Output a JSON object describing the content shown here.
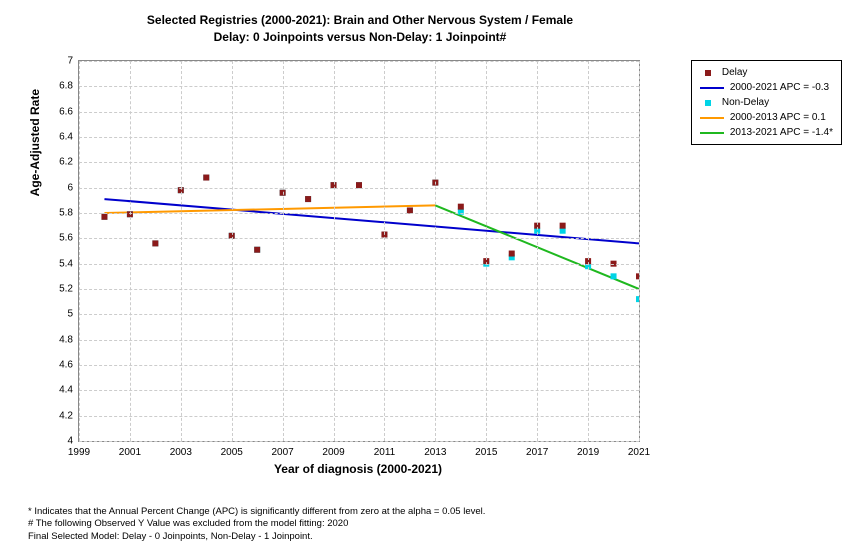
{
  "chart": {
    "title_line1": "Selected Registries (2000-2021): Brain and Other Nervous System / Female",
    "title_line2": "Delay: 0 Joinpoints  versus  Non-Delay: 1 Joinpoint#",
    "xlabel": "Year of diagnosis (2000-2021)",
    "ylabel": "Age-Adjusted Rate",
    "xlim": [
      1999,
      2021
    ],
    "ylim": [
      4,
      7
    ],
    "xticks": [
      1999,
      2001,
      2003,
      2005,
      2007,
      2009,
      2011,
      2013,
      2015,
      2017,
      2019,
      2021
    ],
    "yticks": [
      4,
      4.2,
      4.4,
      4.6,
      4.8,
      5,
      5.2,
      5.4,
      5.6,
      5.8,
      6,
      6.2,
      6.4,
      6.6,
      6.8,
      7
    ],
    "grid_color": "#cccccc",
    "border_color": "#888888",
    "background_color": "#ffffff",
    "title_fontsize": 12,
    "label_fontsize": 12,
    "tick_fontsize": 10,
    "series": {
      "delay_points": {
        "label": "Delay",
        "color": "#8b1a1a",
        "marker": "square",
        "marker_size": 6,
        "data": [
          [
            2000,
            5.77
          ],
          [
            2001,
            5.79
          ],
          [
            2002,
            5.56
          ],
          [
            2003,
            5.98
          ],
          [
            2004,
            6.08
          ],
          [
            2005,
            5.62
          ],
          [
            2006,
            5.51
          ],
          [
            2007,
            5.96
          ],
          [
            2008,
            5.91
          ],
          [
            2009,
            6.02
          ],
          [
            2010,
            6.02
          ],
          [
            2011,
            5.63
          ],
          [
            2012,
            5.82
          ],
          [
            2013,
            6.04
          ],
          [
            2014,
            5.85
          ],
          [
            2015,
            5.42
          ],
          [
            2016,
            5.48
          ],
          [
            2017,
            5.7
          ],
          [
            2018,
            5.7
          ],
          [
            2019,
            5.42
          ],
          [
            2020,
            5.4
          ],
          [
            2021,
            5.3
          ]
        ]
      },
      "nondelay_points": {
        "label": "Non-Delay",
        "color": "#00d4e6",
        "marker": "square",
        "marker_size": 6,
        "data": [
          [
            2000,
            5.77
          ],
          [
            2001,
            5.79
          ],
          [
            2002,
            5.56
          ],
          [
            2003,
            5.98
          ],
          [
            2004,
            6.08
          ],
          [
            2005,
            5.62
          ],
          [
            2006,
            5.51
          ],
          [
            2007,
            5.96
          ],
          [
            2008,
            5.91
          ],
          [
            2009,
            6.02
          ],
          [
            2010,
            6.02
          ],
          [
            2011,
            5.63
          ],
          [
            2012,
            5.82
          ],
          [
            2013,
            6.04
          ],
          [
            2014,
            5.81
          ],
          [
            2015,
            5.4
          ],
          [
            2016,
            5.45
          ],
          [
            2017,
            5.66
          ],
          [
            2018,
            5.66
          ],
          [
            2019,
            5.38
          ],
          [
            2020,
            5.3
          ],
          [
            2021,
            5.12
          ]
        ]
      }
    },
    "trend_lines": [
      {
        "label": "2000-2021 APC = -0.3",
        "color": "#0000cc",
        "width": 2,
        "points": [
          [
            2000,
            5.91
          ],
          [
            2021,
            5.56
          ]
        ]
      },
      {
        "label": "2000-2013 APC =  0.1",
        "color": "#ff9900",
        "width": 2,
        "points": [
          [
            2000,
            5.8
          ],
          [
            2013,
            5.86
          ]
        ]
      },
      {
        "label": "2013-2021 APC = -1.4*",
        "color": "#1fb81f",
        "width": 2,
        "points": [
          [
            2013,
            5.86
          ],
          [
            2021,
            5.2
          ]
        ]
      }
    ]
  },
  "footnotes": {
    "f1": "* Indicates that the Annual Percent Change (APC) is significantly different from zero at the alpha = 0.05 level.",
    "f2": " # The following Observed Y Value was excluded from the model fitting:  2020",
    "f3": "Final Selected Model: Delay - 0 Joinpoints, Non-Delay - 1 Joinpoint."
  }
}
